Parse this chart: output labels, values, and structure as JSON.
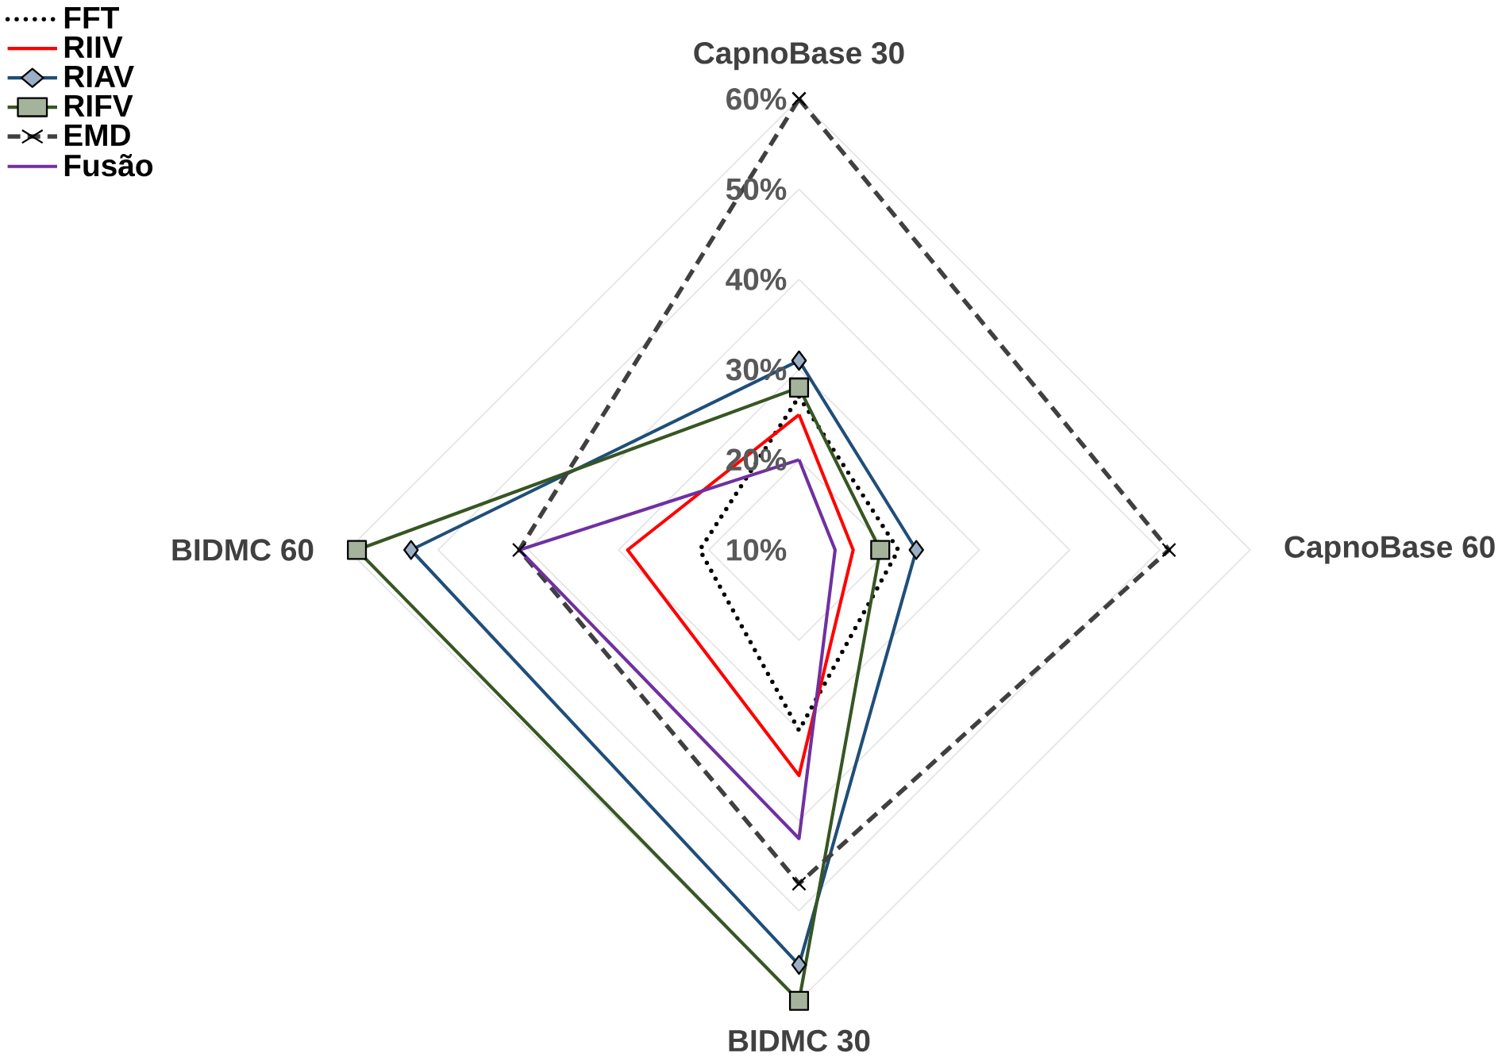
{
  "chart_data": {
    "type": "radar",
    "categories": [
      "CapnoBase 30",
      "CapnoBase 60",
      "BIDMC 30",
      "BIDMC 60"
    ],
    "ylim": [
      10,
      60
    ],
    "yticks": [
      {
        "value": 10,
        "label": "10%"
      },
      {
        "value": 20,
        "label": "20%"
      },
      {
        "value": 30,
        "label": "30%"
      },
      {
        "value": 40,
        "label": "40%"
      },
      {
        "value": 50,
        "label": "50%"
      },
      {
        "value": 60,
        "label": "60%"
      }
    ],
    "grid": true,
    "legend": "top left",
    "series": [
      {
        "name": "FFT",
        "color": "#000000",
        "line_style": "dotted",
        "marker": "none",
        "values": [
          27,
          21,
          30,
          21
        ]
      },
      {
        "name": "RIIV",
        "color": "#ff0000",
        "line_style": "solid",
        "marker": "none",
        "values": [
          25,
          16,
          35,
          29
        ]
      },
      {
        "name": "RIAV",
        "color": "#1f4e79",
        "line_style": "solid",
        "marker": "diamond",
        "values": [
          31,
          23,
          56,
          53
        ]
      },
      {
        "name": "RIFV",
        "color": "#375623",
        "line_style": "solid",
        "marker": "square",
        "values": [
          28,
          19,
          60,
          59
        ]
      },
      {
        "name": "EMD",
        "color": "#404040",
        "line_style": "dashed",
        "marker": "cross",
        "values": [
          60,
          51,
          47,
          41
        ]
      },
      {
        "name": "Fusão",
        "color": "#7030a0",
        "line_style": "solid",
        "marker": "none",
        "values": [
          20,
          14,
          42,
          41
        ]
      }
    ]
  }
}
